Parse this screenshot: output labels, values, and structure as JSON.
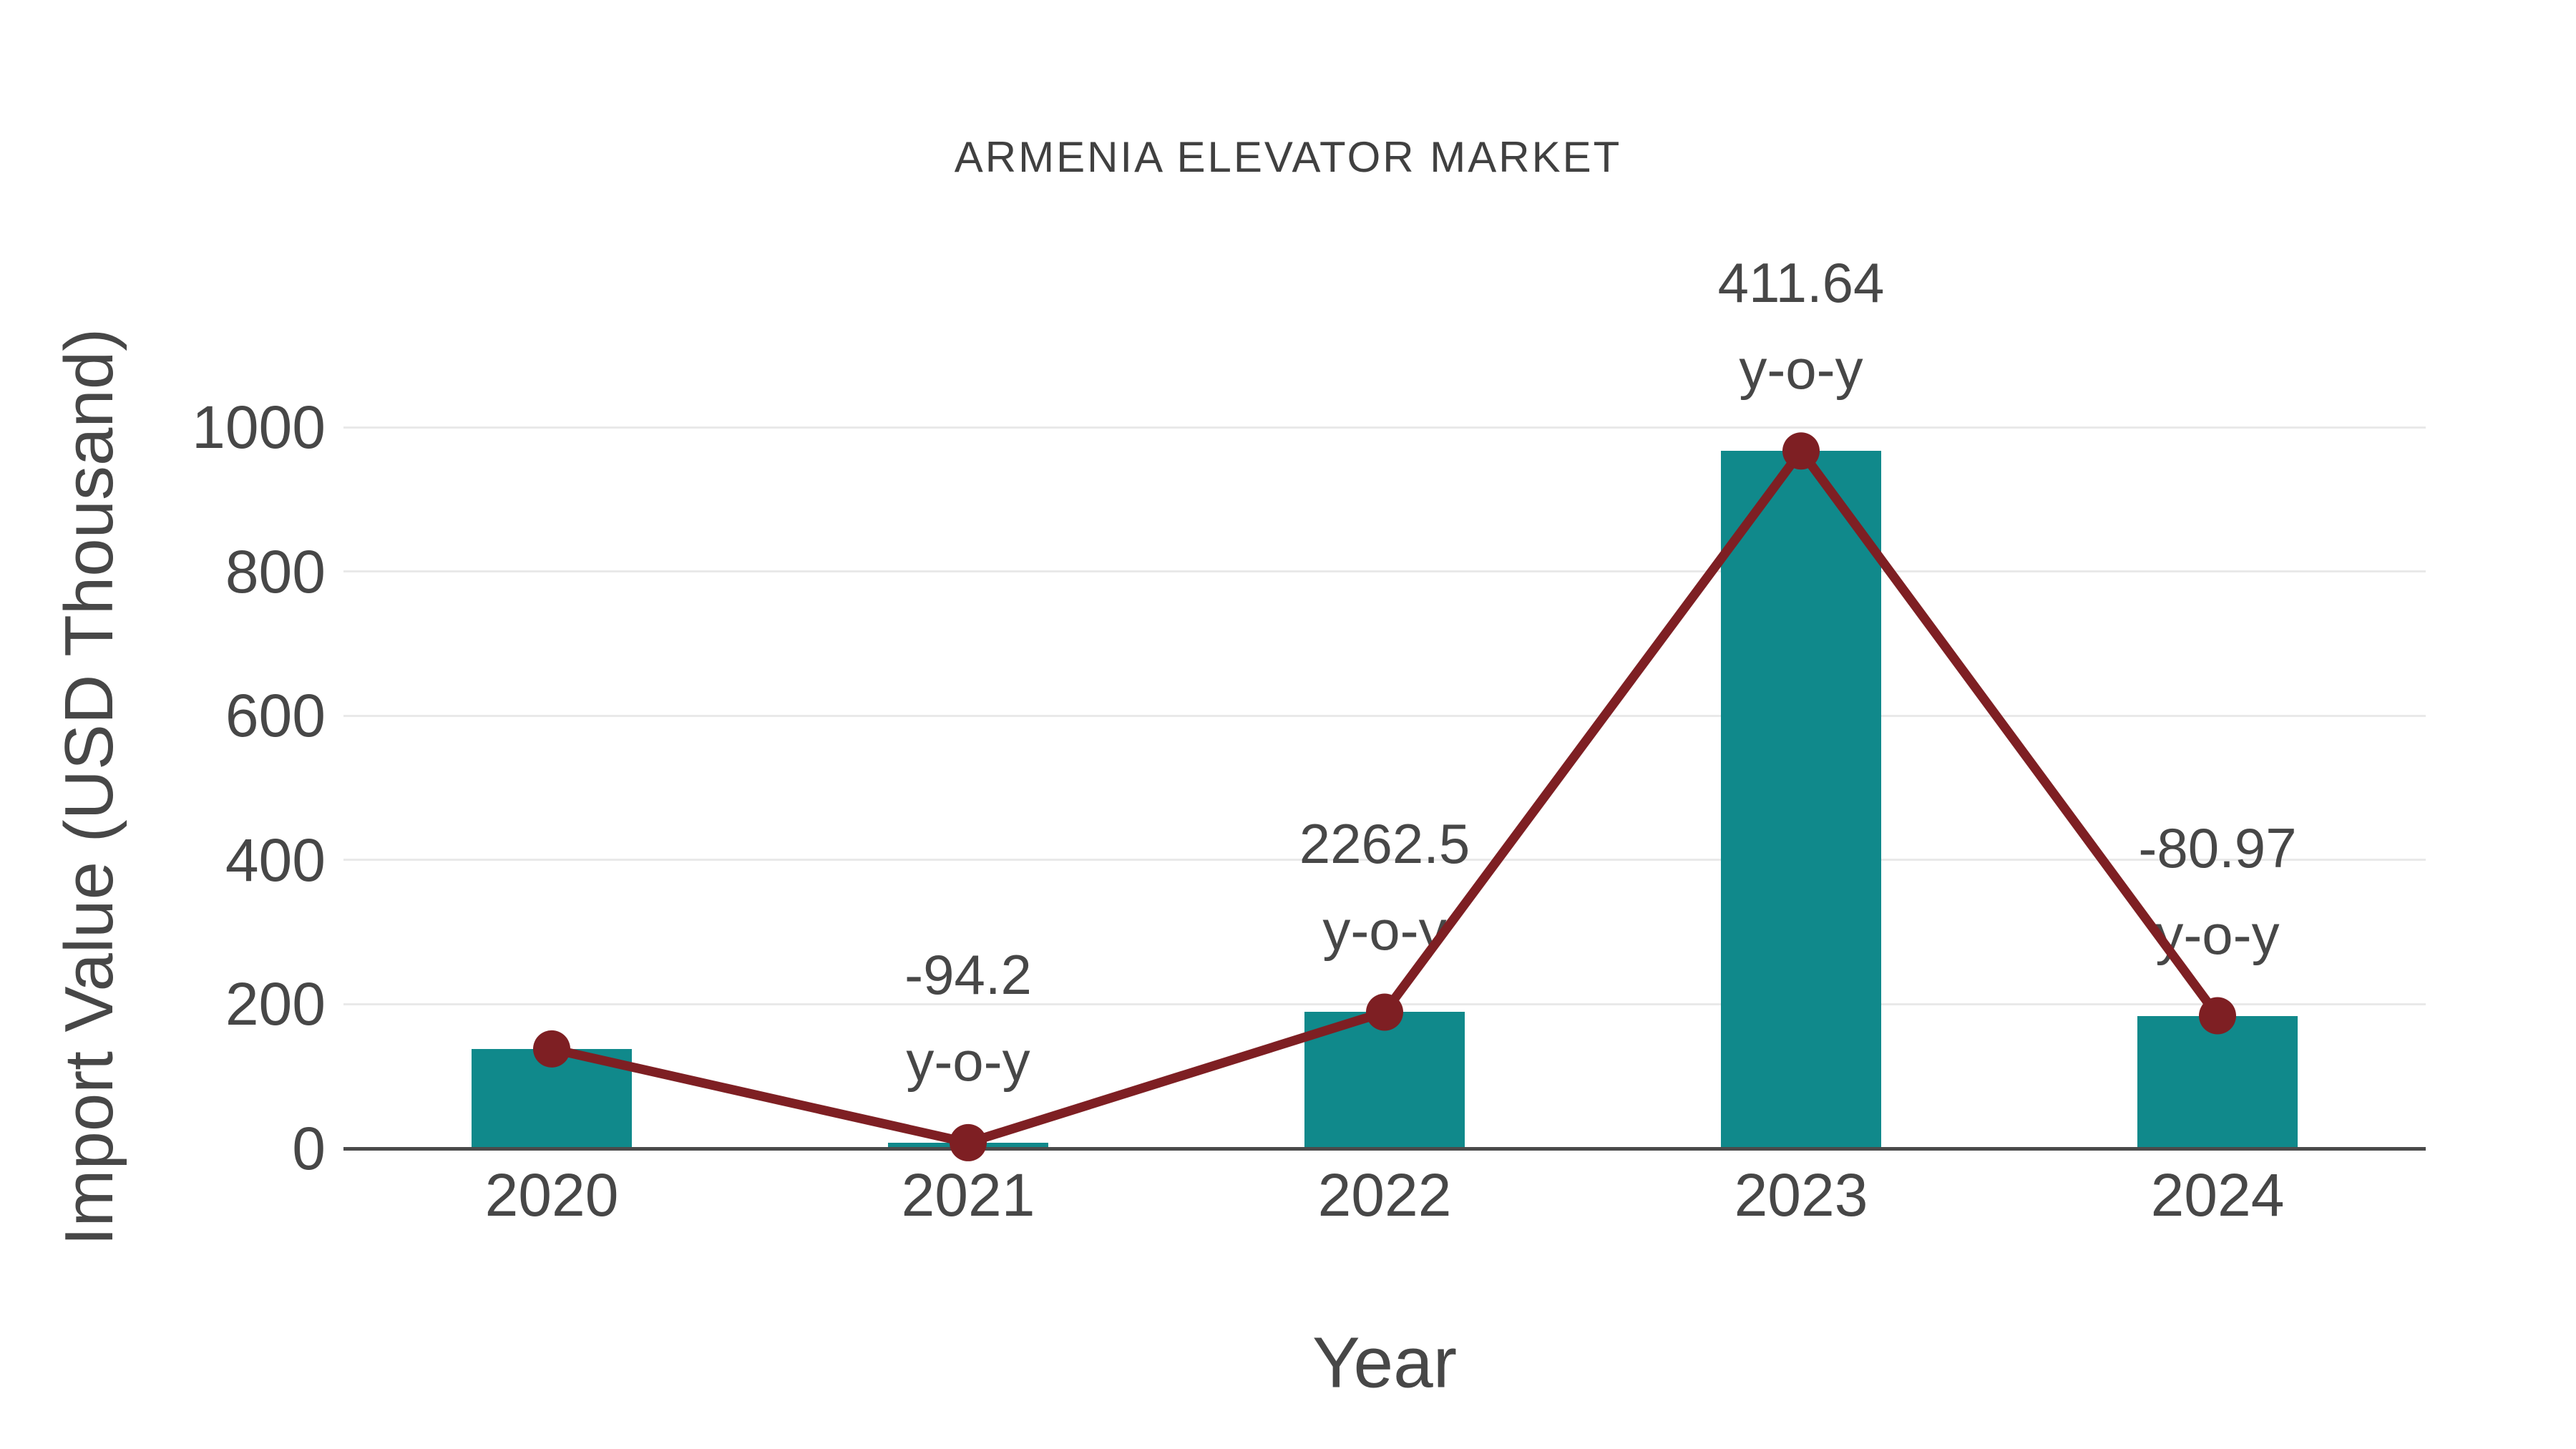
{
  "title": "ARMENIA ELEVATOR MARKET",
  "chart_data": {
    "type": "bar",
    "title": "ARMENIA ELEVATOR MARKET",
    "xlabel": "Year",
    "ylabel": "Import Value (USD Thousand)",
    "categories": [
      "2020",
      "2021",
      "2022",
      "2023",
      "2024"
    ],
    "series": [
      {
        "name": "import-value-bars",
        "type": "bar",
        "values": [
          138,
          8,
          189,
          967,
          184
        ]
      },
      {
        "name": "import-value-trend-line",
        "type": "line",
        "values": [
          138,
          8,
          189,
          967,
          184
        ]
      }
    ],
    "annotations": [
      {
        "category": "2021",
        "line1": "-94.2",
        "line2": "y-o-y"
      },
      {
        "category": "2022",
        "line1": "2262.5",
        "line2": "y-o-y"
      },
      {
        "category": "2023",
        "line1": "411.64",
        "line2": "y-o-y"
      },
      {
        "category": "2024",
        "line1": "-80.97",
        "line2": "y-o-y"
      }
    ],
    "ylim": [
      0,
      1000
    ],
    "yticks": [
      0,
      200,
      400,
      600,
      800,
      1000
    ],
    "grid": true,
    "legend_position": "none",
    "colors": {
      "bar": "#10898b",
      "line": "#7e1f23",
      "marker": "#7e1f23",
      "text": "#474747",
      "title_text": "#404040",
      "gridline": "#e9e9e9",
      "axis": "#4a4a4a",
      "background": "#ffffff"
    }
  }
}
